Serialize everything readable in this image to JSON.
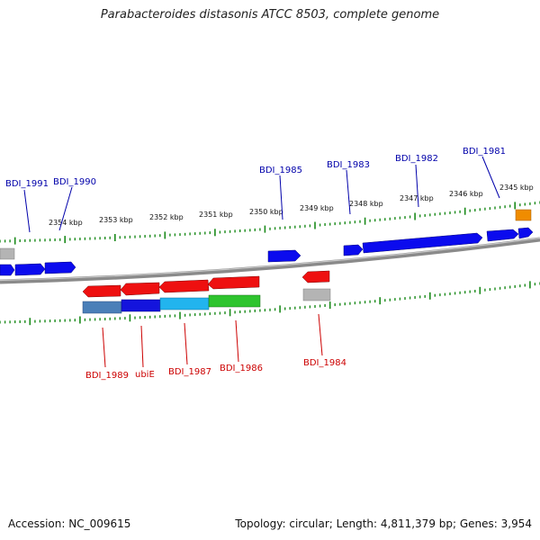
{
  "title": "Parabacteroides distasonis ATCC 8503, complete genome",
  "footer": {
    "accession": "Accession: NC_009615",
    "summary": "Topology: circular; Length: 4,811,379 bp; Genes: 3,954"
  },
  "colors": {
    "forward_gene": "#0000ee",
    "reverse_gene": "#ee0000",
    "top_label": "#0000aa",
    "bottom_label": "#cc0000",
    "tick": "#1a8a1a",
    "backbone": "#7a7a7a",
    "pseudo": "#b4b4b4",
    "rna": "#f08c00"
  },
  "kbp_labels": [
    "2354 kbp",
    "2353 kbp",
    "2352 kbp",
    "2351 kbp",
    "2350 kbp",
    "2349 kbp",
    "2348 kbp",
    "2347 kbp",
    "2346 kbp",
    "2345 kbp"
  ],
  "top_genes": [
    "BDI_1991",
    "BDI_1990",
    "BDI_1985",
    "BDI_1983",
    "BDI_1982",
    "BDI_1981"
  ],
  "bottom_genes": [
    "BDI_1989",
    "ubiE",
    "BDI_1987",
    "BDI_1986",
    "BDI_1984"
  ]
}
